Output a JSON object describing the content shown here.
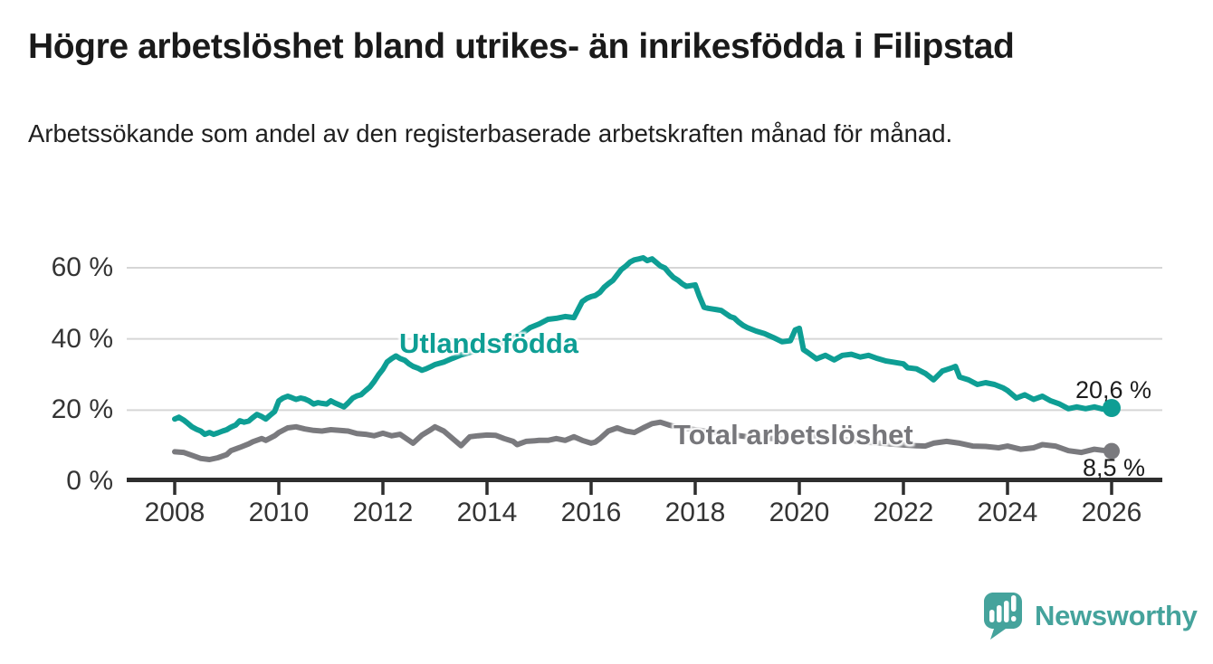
{
  "header": {
    "title": "Högre arbetslöshet bland utrikes- än inrikesfödda i Filipstad",
    "subtitle": "Arbetssökande som andel av den registerbaserade arbetskraften månad för månad."
  },
  "colors": {
    "accent_teal": "#0e9e94",
    "neutral_gray": "#7a7a7e",
    "axis_dark": "#2e2e2e",
    "gridline": "#d6d6d6",
    "text_dark": "#1a1a1a",
    "brand_teal": "#45a39c"
  },
  "footer": {
    "brand": "Newsworthy",
    "logo_icon": "speech-bubble-bar-chart-icon"
  },
  "chart_data": {
    "type": "line",
    "title": "Högre arbetslöshet bland utrikes- än inrikesfödda i Filipstad",
    "subtitle": "Arbetssökande som andel av den registerbaserade arbetskraften månad för månad.",
    "xlabel": "",
    "ylabel": "",
    "grid": "horizontal",
    "legend": "inline-labels",
    "x_axis": {
      "tick_values": [
        2008,
        2010,
        2012,
        2014,
        2016,
        2018,
        2020,
        2022,
        2024,
        2026
      ],
      "tick_labels": [
        "2008",
        "2010",
        "2012",
        "2014",
        "2016",
        "2018",
        "2020",
        "2022",
        "2024",
        "2026"
      ],
      "range": [
        2007.1,
        2026.95
      ]
    },
    "y_axis": {
      "tick_values": [
        0,
        20,
        40,
        60
      ],
      "tick_labels": [
        "0 %",
        "20 %",
        "40 %",
        "60 %"
      ],
      "range": [
        0,
        67
      ],
      "unit": "%"
    },
    "series": [
      {
        "name": "Utlandsfödda",
        "label": "Utlandsfödda",
        "color": "#0e9e94",
        "end_value": 20.6,
        "end_label": "20,6 %",
        "points": [
          [
            2008.0,
            17.5
          ],
          [
            2008.08,
            18.0
          ],
          [
            2008.17,
            17.2
          ],
          [
            2008.25,
            16.3
          ],
          [
            2008.33,
            15.3
          ],
          [
            2008.42,
            14.6
          ],
          [
            2008.5,
            14.1
          ],
          [
            2008.58,
            13.2
          ],
          [
            2008.67,
            13.7
          ],
          [
            2008.75,
            13.2
          ],
          [
            2008.83,
            13.6
          ],
          [
            2008.92,
            14.1
          ],
          [
            2009.0,
            14.5
          ],
          [
            2009.08,
            15.2
          ],
          [
            2009.17,
            15.8
          ],
          [
            2009.25,
            17.0
          ],
          [
            2009.33,
            16.6
          ],
          [
            2009.42,
            16.9
          ],
          [
            2009.5,
            17.9
          ],
          [
            2009.58,
            18.8
          ],
          [
            2009.67,
            18.2
          ],
          [
            2009.75,
            17.5
          ],
          [
            2009.83,
            18.5
          ],
          [
            2009.92,
            19.6
          ],
          [
            2010.0,
            22.6
          ],
          [
            2010.08,
            23.4
          ],
          [
            2010.17,
            23.9
          ],
          [
            2010.25,
            23.5
          ],
          [
            2010.33,
            23.0
          ],
          [
            2010.42,
            23.4
          ],
          [
            2010.5,
            23.1
          ],
          [
            2010.58,
            22.6
          ],
          [
            2010.67,
            21.7
          ],
          [
            2010.75,
            22.1
          ],
          [
            2010.83,
            21.9
          ],
          [
            2010.92,
            21.7
          ],
          [
            2011.0,
            22.6
          ],
          [
            2011.08,
            22.0
          ],
          [
            2011.17,
            21.4
          ],
          [
            2011.25,
            20.9
          ],
          [
            2011.33,
            22.0
          ],
          [
            2011.42,
            23.4
          ],
          [
            2011.5,
            24.0
          ],
          [
            2011.58,
            24.3
          ],
          [
            2011.67,
            25.5
          ],
          [
            2011.75,
            26.5
          ],
          [
            2011.83,
            28.0
          ],
          [
            2011.92,
            30.0
          ],
          [
            2012.0,
            31.5
          ],
          [
            2012.08,
            33.5
          ],
          [
            2012.17,
            34.5
          ],
          [
            2012.25,
            35.2
          ],
          [
            2012.33,
            34.5
          ],
          [
            2012.42,
            34.0
          ],
          [
            2012.5,
            33.0
          ],
          [
            2012.58,
            32.3
          ],
          [
            2012.67,
            31.8
          ],
          [
            2012.75,
            31.2
          ],
          [
            2012.83,
            31.6
          ],
          [
            2012.92,
            32.2
          ],
          [
            2013.0,
            32.8
          ],
          [
            2013.17,
            33.5
          ],
          [
            2013.33,
            34.5
          ],
          [
            2013.5,
            35.5
          ],
          [
            2013.67,
            36.2
          ],
          [
            2013.83,
            36.8
          ],
          [
            2014.0,
            37.5
          ],
          [
            2014.17,
            38.2
          ],
          [
            2014.33,
            39.2
          ],
          [
            2014.5,
            40.2
          ],
          [
            2014.67,
            41.5
          ],
          [
            2014.83,
            43.2
          ],
          [
            2015.0,
            44.2
          ],
          [
            2015.17,
            45.5
          ],
          [
            2015.33,
            45.8
          ],
          [
            2015.5,
            46.3
          ],
          [
            2015.67,
            46.0
          ],
          [
            2015.83,
            50.5
          ],
          [
            2015.92,
            51.4
          ],
          [
            2016.0,
            51.9
          ],
          [
            2016.08,
            52.2
          ],
          [
            2016.17,
            53.1
          ],
          [
            2016.25,
            54.5
          ],
          [
            2016.33,
            55.5
          ],
          [
            2016.42,
            56.5
          ],
          [
            2016.5,
            58.0
          ],
          [
            2016.58,
            59.5
          ],
          [
            2016.67,
            60.5
          ],
          [
            2016.75,
            61.6
          ],
          [
            2016.83,
            62.2
          ],
          [
            2016.92,
            62.5
          ],
          [
            2017.0,
            62.8
          ],
          [
            2017.08,
            62.0
          ],
          [
            2017.17,
            62.5
          ],
          [
            2017.25,
            61.5
          ],
          [
            2017.33,
            60.5
          ],
          [
            2017.42,
            59.9
          ],
          [
            2017.5,
            58.5
          ],
          [
            2017.58,
            57.3
          ],
          [
            2017.67,
            56.5
          ],
          [
            2017.75,
            55.5
          ],
          [
            2017.83,
            54.8
          ],
          [
            2017.92,
            55.0
          ],
          [
            2018.0,
            55.2
          ],
          [
            2018.08,
            52.0
          ],
          [
            2018.17,
            48.9
          ],
          [
            2018.25,
            48.6
          ],
          [
            2018.33,
            48.4
          ],
          [
            2018.42,
            48.2
          ],
          [
            2018.5,
            48.0
          ],
          [
            2018.58,
            47.2
          ],
          [
            2018.67,
            46.3
          ],
          [
            2018.75,
            45.9
          ],
          [
            2018.83,
            44.8
          ],
          [
            2018.92,
            43.8
          ],
          [
            2019.0,
            43.2
          ],
          [
            2019.17,
            42.2
          ],
          [
            2019.33,
            41.5
          ],
          [
            2019.5,
            40.4
          ],
          [
            2019.67,
            39.2
          ],
          [
            2019.83,
            39.5
          ],
          [
            2019.92,
            42.5
          ],
          [
            2020.0,
            43.0
          ],
          [
            2020.08,
            37.0
          ],
          [
            2020.17,
            36.1
          ],
          [
            2020.33,
            34.4
          ],
          [
            2020.5,
            35.4
          ],
          [
            2020.67,
            34.1
          ],
          [
            2020.83,
            35.4
          ],
          [
            2021.0,
            35.7
          ],
          [
            2021.17,
            34.9
          ],
          [
            2021.33,
            35.4
          ],
          [
            2021.5,
            34.5
          ],
          [
            2021.67,
            33.8
          ],
          [
            2021.83,
            33.4
          ],
          [
            2022.0,
            33.0
          ],
          [
            2022.08,
            31.9
          ],
          [
            2022.25,
            31.6
          ],
          [
            2022.42,
            30.3
          ],
          [
            2022.58,
            28.5
          ],
          [
            2022.75,
            31.0
          ],
          [
            2022.92,
            31.8
          ],
          [
            2023.0,
            32.3
          ],
          [
            2023.08,
            29.3
          ],
          [
            2023.25,
            28.5
          ],
          [
            2023.42,
            27.2
          ],
          [
            2023.58,
            27.7
          ],
          [
            2023.75,
            27.2
          ],
          [
            2023.92,
            26.2
          ],
          [
            2024.0,
            25.5
          ],
          [
            2024.17,
            23.4
          ],
          [
            2024.33,
            24.3
          ],
          [
            2024.5,
            23.0
          ],
          [
            2024.67,
            23.9
          ],
          [
            2024.83,
            22.6
          ],
          [
            2025.0,
            21.7
          ],
          [
            2025.17,
            20.4
          ],
          [
            2025.33,
            20.9
          ],
          [
            2025.5,
            20.4
          ],
          [
            2025.67,
            20.9
          ],
          [
            2025.83,
            20.3
          ],
          [
            2026.0,
            20.6
          ]
        ]
      },
      {
        "name": "Total arbetslöshet",
        "label": "Total arbetslöshet",
        "color": "#7a7a7e",
        "end_value": 8.5,
        "end_label": "8,5 %",
        "points": [
          [
            2008.0,
            8.3
          ],
          [
            2008.17,
            8.1
          ],
          [
            2008.33,
            7.3
          ],
          [
            2008.5,
            6.4
          ],
          [
            2008.67,
            6.1
          ],
          [
            2008.83,
            6.6
          ],
          [
            2009.0,
            7.5
          ],
          [
            2009.08,
            8.6
          ],
          [
            2009.25,
            9.5
          ],
          [
            2009.42,
            10.5
          ],
          [
            2009.5,
            11.1
          ],
          [
            2009.67,
            12.0
          ],
          [
            2009.75,
            11.5
          ],
          [
            2009.92,
            12.8
          ],
          [
            2010.0,
            13.7
          ],
          [
            2010.17,
            15.0
          ],
          [
            2010.33,
            15.3
          ],
          [
            2010.5,
            14.7
          ],
          [
            2010.67,
            14.3
          ],
          [
            2010.83,
            14.1
          ],
          [
            2011.0,
            14.5
          ],
          [
            2011.17,
            14.3
          ],
          [
            2011.33,
            14.1
          ],
          [
            2011.5,
            13.4
          ],
          [
            2011.67,
            13.2
          ],
          [
            2011.83,
            12.8
          ],
          [
            2012.0,
            13.5
          ],
          [
            2012.17,
            12.8
          ],
          [
            2012.33,
            13.2
          ],
          [
            2012.5,
            11.5
          ],
          [
            2012.58,
            10.7
          ],
          [
            2012.75,
            13.0
          ],
          [
            2012.92,
            14.5
          ],
          [
            2013.0,
            15.3
          ],
          [
            2013.17,
            14.1
          ],
          [
            2013.33,
            12.1
          ],
          [
            2013.5,
            10.0
          ],
          [
            2013.67,
            12.5
          ],
          [
            2013.83,
            12.8
          ],
          [
            2014.0,
            13.0
          ],
          [
            2014.17,
            12.9
          ],
          [
            2014.33,
            12.0
          ],
          [
            2014.5,
            11.2
          ],
          [
            2014.58,
            10.3
          ],
          [
            2014.75,
            11.2
          ],
          [
            2014.92,
            11.4
          ],
          [
            2015.0,
            11.5
          ],
          [
            2015.17,
            11.5
          ],
          [
            2015.33,
            12.0
          ],
          [
            2015.5,
            11.5
          ],
          [
            2015.67,
            12.5
          ],
          [
            2015.83,
            11.5
          ],
          [
            2016.0,
            10.7
          ],
          [
            2016.08,
            11.0
          ],
          [
            2016.17,
            12.0
          ],
          [
            2016.33,
            14.1
          ],
          [
            2016.5,
            15.0
          ],
          [
            2016.67,
            14.1
          ],
          [
            2016.83,
            13.7
          ],
          [
            2017.0,
            15.0
          ],
          [
            2017.17,
            16.2
          ],
          [
            2017.33,
            16.6
          ],
          [
            2017.5,
            15.8
          ],
          [
            2017.67,
            15.2
          ],
          [
            2017.83,
            14.8
          ],
          [
            2018.0,
            14.5
          ],
          [
            2018.25,
            14.0
          ],
          [
            2018.5,
            13.5
          ],
          [
            2018.75,
            13.0
          ],
          [
            2019.0,
            12.5
          ],
          [
            2019.25,
            12.2
          ],
          [
            2019.5,
            12.0
          ],
          [
            2019.75,
            11.8
          ],
          [
            2020.0,
            12.0
          ],
          [
            2020.25,
            12.8
          ],
          [
            2020.5,
            12.5
          ],
          [
            2020.75,
            12.0
          ],
          [
            2021.0,
            11.5
          ],
          [
            2021.25,
            11.0
          ],
          [
            2021.5,
            10.8
          ],
          [
            2021.75,
            10.5
          ],
          [
            2022.0,
            10.2
          ],
          [
            2022.25,
            10.0
          ],
          [
            2022.42,
            9.9
          ],
          [
            2022.58,
            10.7
          ],
          [
            2022.83,
            11.2
          ],
          [
            2023.08,
            10.7
          ],
          [
            2023.33,
            9.9
          ],
          [
            2023.58,
            9.8
          ],
          [
            2023.83,
            9.4
          ],
          [
            2024.0,
            9.9
          ],
          [
            2024.25,
            9.0
          ],
          [
            2024.5,
            9.4
          ],
          [
            2024.67,
            10.3
          ],
          [
            2024.92,
            9.9
          ],
          [
            2025.17,
            8.6
          ],
          [
            2025.42,
            8.1
          ],
          [
            2025.67,
            9.0
          ],
          [
            2025.83,
            8.7
          ],
          [
            2026.0,
            8.5
          ]
        ]
      }
    ]
  }
}
